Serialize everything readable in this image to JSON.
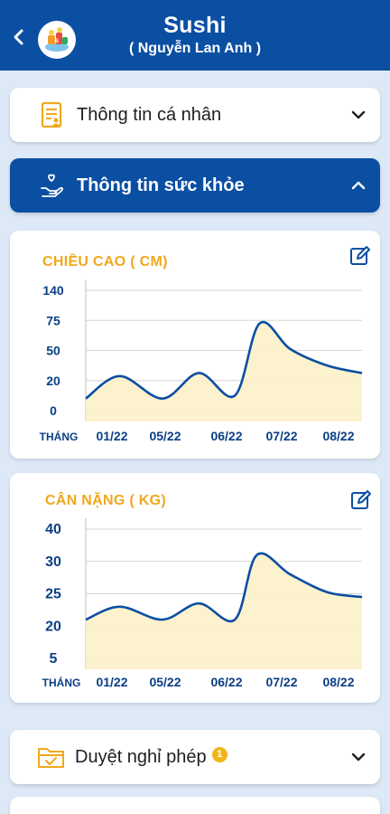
{
  "header": {
    "title": "Sushi",
    "subtitle": "( Nguyễn Lan Anh )",
    "back_icon": "chevron-left-icon",
    "avatar_icon": "school-logo-avatar"
  },
  "sections": {
    "personal": {
      "label": "Thông tin cá nhân",
      "icon": "document-profile-icon",
      "expanded": false
    },
    "health": {
      "label": "Thông tin sức khỏe",
      "icon": "hand-heart-icon",
      "expanded": true
    },
    "leave": {
      "label": "Duyệt nghỉ phép",
      "icon": "folder-check-icon",
      "badge": "1",
      "expanded": false
    }
  },
  "colors": {
    "primary": "#0b4fa3",
    "accent": "#f0a81c",
    "background": "#dde9f7",
    "line": "#0b4fa3",
    "fill": "#fdf1c9"
  },
  "chart_data": [
    {
      "type": "area",
      "title": "CHIỀU CAO ( CM)",
      "xlabel": "THÁNG",
      "y_ticks": [
        "0",
        "20",
        "50",
        "75",
        "140"
      ],
      "x_ticks": [
        "01/22",
        "05/22",
        "06/22",
        "07/22",
        "08/22"
      ],
      "y_scale": "categorical-ticks",
      "values": [
        {
          "x": 0.0,
          "y": 0.4
        },
        {
          "x": 0.55,
          "y": 1.15
        },
        {
          "x": 1.35,
          "y": 0.4
        },
        {
          "x": 1.95,
          "y": 1.25
        },
        {
          "x": 2.55,
          "y": 0.5
        },
        {
          "x": 3.0,
          "y": 2.9
        },
        {
          "x": 3.55,
          "y": 2.05
        },
        {
          "x": 4.2,
          "y": 1.5
        },
        {
          "x": 4.6,
          "y": 1.25
        }
      ]
    },
    {
      "type": "area",
      "title": "CÂN NẶNG ( KG)",
      "xlabel": "THÁNG",
      "y_ticks": [
        "5",
        "20",
        "25",
        "30",
        "40"
      ],
      "x_ticks": [
        "01/22",
        "05/22",
        "06/22",
        "07/22",
        "08/22"
      ],
      "y_scale": "categorical-ticks",
      "values": [
        {
          "x": 0.0,
          "y": 1.2
        },
        {
          "x": 0.55,
          "y": 1.6
        },
        {
          "x": 1.35,
          "y": 1.2
        },
        {
          "x": 1.95,
          "y": 1.7
        },
        {
          "x": 2.55,
          "y": 1.2
        },
        {
          "x": 2.95,
          "y": 3.2
        },
        {
          "x": 3.55,
          "y": 2.6
        },
        {
          "x": 4.2,
          "y": 2.05
        },
        {
          "x": 4.6,
          "y": 1.9
        }
      ]
    }
  ]
}
